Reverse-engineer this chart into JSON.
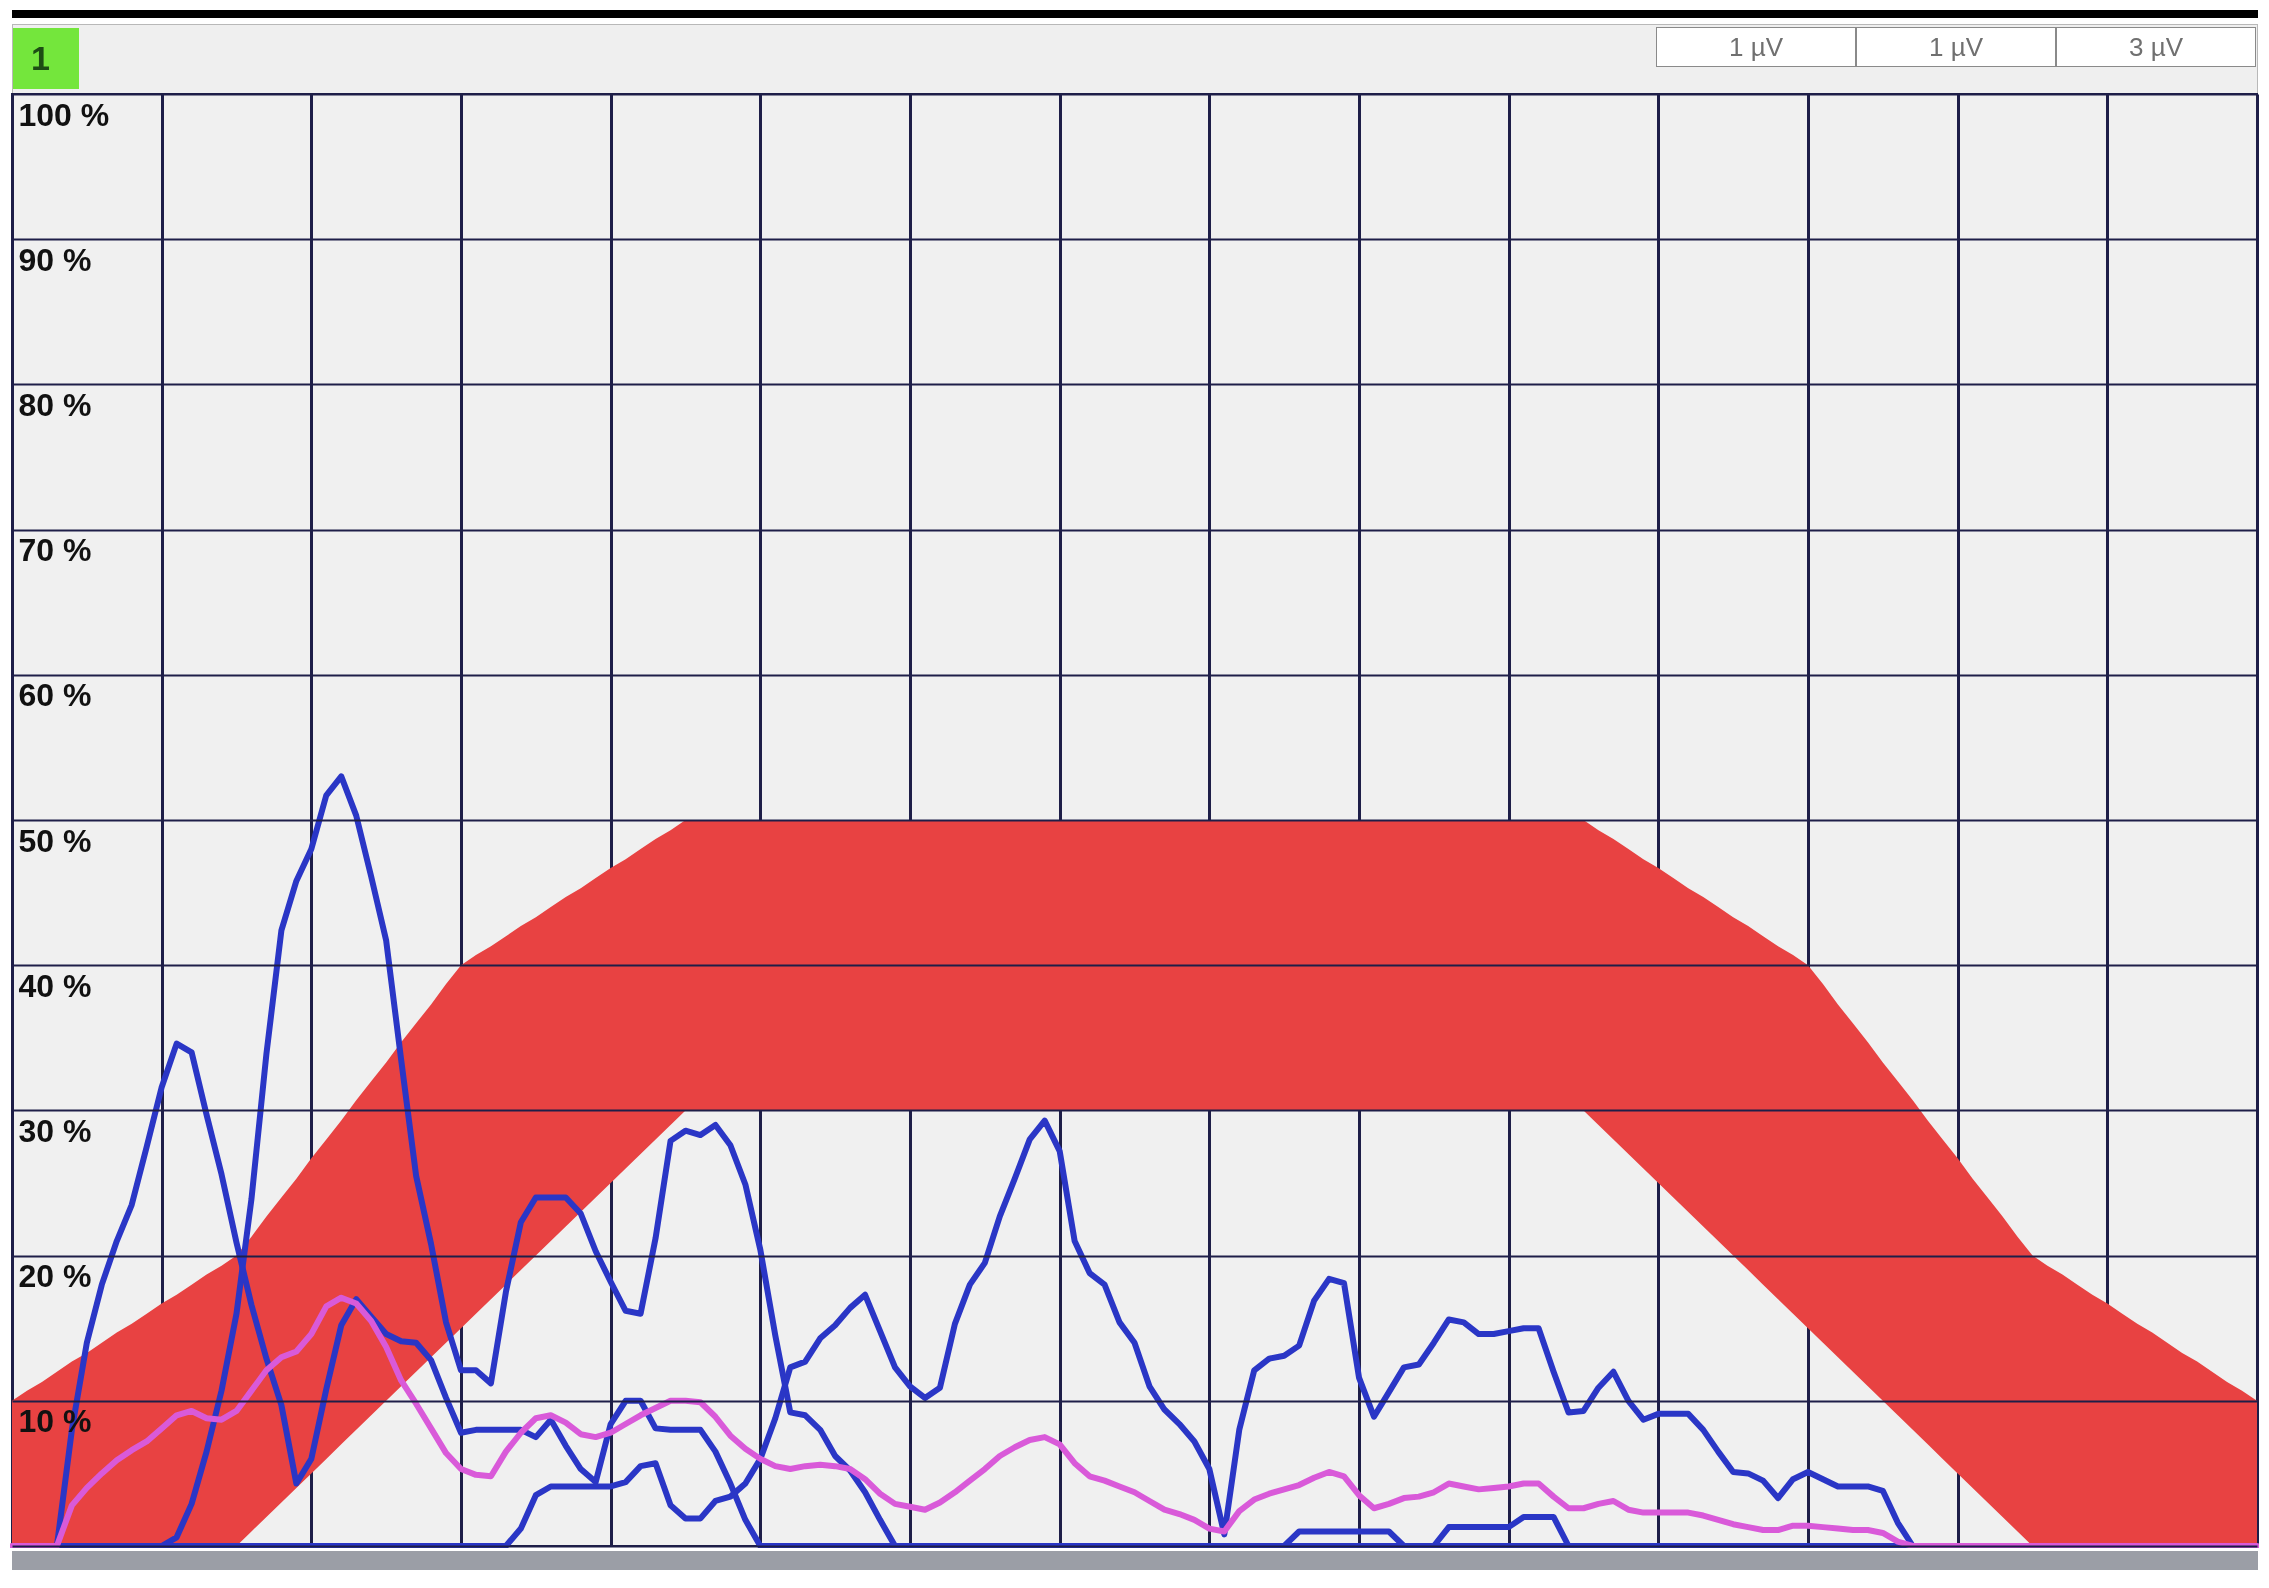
{
  "chart_data": {
    "type": "line",
    "title": "1",
    "annotations": [
      "1 µV",
      "1 µV",
      "3 µV"
    ],
    "categories": [
      null,
      null,
      null,
      null,
      null,
      null,
      null,
      null,
      null,
      null,
      null,
      null,
      null,
      null,
      null,
      null,
      null,
      null,
      null,
      null,
      null,
      null,
      null,
      null,
      null,
      null,
      null,
      null,
      null,
      null,
      null,
      null,
      null,
      null,
      null,
      null,
      null,
      null,
      null,
      null,
      null,
      null,
      null,
      null,
      null,
      null,
      null,
      null,
      null,
      null,
      null,
      null,
      null,
      null,
      null,
      null,
      null,
      null,
      null,
      null,
      null,
      null,
      null,
      null,
      null,
      null,
      null,
      null,
      null,
      null,
      null,
      null,
      null,
      null,
      null,
      null,
      null,
      null,
      null,
      null,
      null,
      null,
      null,
      null,
      null,
      null,
      null,
      null,
      null,
      null,
      null,
      null,
      null,
      null,
      null,
      null,
      null,
      null,
      null,
      null,
      null,
      null,
      null,
      null,
      null,
      null,
      null,
      null,
      null,
      null,
      null,
      null,
      null,
      null,
      null,
      null,
      null,
      null,
      null,
      null,
      null,
      null,
      null,
      null,
      null,
      null,
      null,
      null,
      null,
      null,
      null,
      null,
      null,
      null,
      null,
      null,
      null,
      null,
      null,
      null,
      null,
      null,
      null,
      null,
      null,
      null,
      null,
      null,
      null,
      null,
      null
    ],
    "series": [
      {
        "type": "area",
        "color": "#e84242",
        "values": [
          null,
          null,
          null,
          null,
          null,
          null,
          null,
          null,
          null,
          null,
          null,
          null,
          null,
          null,
          null,
          null,
          null,
          null,
          null,
          null,
          null,
          null,
          null,
          null,
          null,
          null,
          null,
          null,
          null,
          null,
          null,
          null,
          null,
          null,
          null,
          null,
          null,
          null,
          null,
          null,
          null,
          null,
          null,
          null,
          null,
          null,
          null,
          null,
          null,
          null,
          null,
          null,
          null,
          null,
          null,
          null,
          null,
          null,
          null,
          null,
          null,
          null,
          null,
          null,
          null,
          null,
          null,
          null,
          null,
          null,
          null,
          null,
          null,
          null,
          null,
          null,
          null,
          null,
          null,
          null,
          null,
          null,
          null,
          null,
          null,
          null,
          null,
          null,
          null,
          null,
          null,
          null,
          null,
          null,
          null,
          null,
          null,
          null,
          null,
          null,
          null,
          null,
          null,
          null,
          null,
          null,
          null,
          null,
          null,
          null,
          null,
          null,
          null,
          null,
          null,
          null,
          null,
          null,
          null,
          null,
          null,
          null,
          null,
          null,
          null,
          null,
          null,
          null,
          null,
          null,
          null,
          null,
          null,
          null,
          null,
          null,
          null,
          null,
          null,
          null,
          null,
          null,
          null,
          null,
          null,
          null,
          null,
          null,
          null,
          null,
          null
        ],
        "upper": [
          10,
          10.7,
          11.3,
          12,
          12.7,
          13.3,
          14,
          14.7,
          15.3,
          16,
          16.7,
          17.3,
          18,
          18.7,
          19.3,
          20,
          21.3,
          22.7,
          24,
          25.3,
          26.7,
          28,
          29.3,
          30.7,
          32,
          33.3,
          34.7,
          36,
          37.3,
          38.7,
          40,
          40.7,
          41.3,
          42,
          42.7,
          43.3,
          44,
          44.7,
          45.3,
          46,
          46.7,
          47.3,
          48,
          48.7,
          49.3,
          50,
          50,
          50,
          50,
          50,
          50,
          50,
          50,
          50,
          50,
          50,
          50,
          50,
          50,
          50,
          50,
          50,
          50,
          50,
          50,
          50,
          50,
          50,
          50,
          50,
          50,
          50,
          50,
          50,
          50,
          50,
          50,
          50,
          50,
          50,
          50,
          50,
          50,
          50,
          50,
          50,
          50,
          50,
          50,
          50,
          50,
          50,
          50,
          50,
          50,
          50,
          50,
          50,
          50,
          50,
          50,
          50,
          50,
          50,
          50,
          50,
          49.3,
          48.7,
          48,
          47.3,
          46.7,
          46,
          45.3,
          44.7,
          44,
          43.3,
          42.7,
          42,
          41.3,
          40.7,
          40,
          38.7,
          37.3,
          36,
          34.7,
          33.3,
          32,
          30.7,
          29.3,
          28,
          26.7,
          25.3,
          24,
          22.7,
          21.3,
          20,
          19.3,
          18.7,
          18,
          17.3,
          16.7,
          16,
          15.3,
          14.7,
          14,
          13.3,
          12.7,
          12,
          11.3,
          10.7,
          10
        ],
        "lower": [
          0,
          0,
          0,
          0,
          0,
          0,
          0,
          0,
          0,
          0,
          0,
          0,
          0,
          0,
          0,
          0,
          1,
          2,
          3,
          4,
          5,
          6,
          7,
          8,
          9,
          10,
          11,
          12,
          13,
          14,
          15,
          16,
          17,
          18,
          19,
          20,
          21,
          22,
          23,
          24,
          25,
          26,
          27,
          28,
          29,
          30,
          30,
          30,
          30,
          30,
          30,
          30,
          30,
          30,
          30,
          30,
          30,
          30,
          30,
          30,
          30,
          30,
          30,
          30,
          30,
          30,
          30,
          30,
          30,
          30,
          30,
          30,
          30,
          30,
          30,
          30,
          30,
          30,
          30,
          30,
          30,
          30,
          30,
          30,
          30,
          30,
          30,
          30,
          30,
          30,
          30,
          30,
          30,
          30,
          30,
          30,
          30,
          30,
          30,
          30,
          30,
          30,
          30,
          30,
          30,
          30,
          29,
          28,
          27,
          26,
          25,
          24,
          23,
          22,
          21,
          20,
          19,
          18,
          17,
          16,
          15,
          14,
          13,
          12,
          11,
          10,
          9,
          8,
          7,
          6,
          5,
          4,
          3,
          2,
          1,
          0,
          0,
          0,
          0,
          0,
          0,
          0,
          0,
          0,
          0,
          0,
          0,
          0,
          0,
          0,
          0
        ]
      },
      {
        "color": "#2a36c6",
        "values": [
          null,
          null,
          null,
          0,
          8,
          14,
          18,
          21,
          23.5,
          27.5,
          31.6,
          34.6,
          34,
          29.7,
          25.6,
          20.9,
          16.6,
          12.9,
          9.7,
          4.3,
          6,
          10.8,
          15.2,
          17,
          15.8,
          14.6,
          14.1,
          14,
          12.8,
          10.2,
          7.8,
          8,
          8,
          8,
          8,
          7.5,
          8.7,
          6.9,
          5.3,
          4.4,
          8.4,
          10,
          10,
          8.1,
          8,
          8,
          8,
          6.5,
          4.3,
          1.8,
          0,
          0,
          0,
          0,
          0,
          0,
          0,
          0,
          0,
          0,
          0,
          0,
          0,
          0,
          0,
          0,
          0,
          0,
          0,
          0,
          0,
          0,
          0,
          0,
          0,
          0,
          0,
          0,
          0,
          0,
          0,
          0,
          0,
          0,
          0,
          0,
          1,
          1,
          1,
          1,
          1,
          1,
          1,
          0,
          0,
          0,
          1.3,
          1.3,
          1.3,
          1.3,
          1.3,
          2,
          2,
          2,
          0,
          0,
          0,
          0,
          0,
          0,
          0,
          0,
          0,
          0,
          0,
          0,
          0,
          0,
          0,
          0,
          0,
          0,
          0,
          0,
          0,
          0,
          0,
          0,
          null,
          null,
          null,
          null,
          null,
          null,
          null,
          null,
          null,
          null,
          null,
          null,
          null,
          null,
          null,
          null,
          null,
          null,
          null,
          null,
          null,
          null,
          null
        ]
      },
      {
        "color": "#2a36c6",
        "values": [
          null,
          null,
          null,
          0,
          0,
          0,
          0,
          0,
          0,
          0,
          0,
          0.6,
          2.9,
          6.5,
          10.7,
          16,
          23.9,
          33.9,
          42.4,
          45.8,
          48,
          51.7,
          53,
          50.3,
          46.1,
          41.7,
          33.5,
          25.5,
          20.8,
          15.4,
          12.1,
          12.1,
          11.2,
          17.5,
          22.3,
          24,
          24,
          24,
          22.9,
          20.3,
          18.2,
          16.2,
          16,
          21.2,
          27.9,
          28.6,
          28.3,
          29,
          27.6,
          24.9,
          20.4,
          14.5,
          9.2,
          9,
          8,
          6.2,
          5.2,
          3.7,
          1.8,
          0,
          0,
          0,
          0,
          0,
          0,
          0,
          0,
          0,
          0,
          0,
          0,
          0,
          0,
          0,
          0,
          0,
          0,
          0,
          0,
          0,
          0,
          0,
          0,
          0,
          0,
          0,
          0,
          0,
          0,
          0,
          0,
          0,
          0,
          0,
          0,
          0,
          0,
          0,
          0,
          0,
          0,
          0,
          0,
          0,
          0,
          0,
          0,
          0,
          0,
          0,
          0,
          0,
          0,
          0,
          0,
          0,
          0,
          0,
          0,
          0,
          0,
          0,
          0,
          0,
          0,
          0,
          0,
          0,
          null,
          null,
          null,
          null,
          null,
          null,
          null,
          null,
          null,
          null,
          null,
          null,
          null,
          null,
          null,
          null,
          null,
          null,
          null,
          null,
          null,
          null,
          null
        ]
      },
      {
        "color": "#2a36c6",
        "values": [
          null,
          null,
          null,
          0,
          0,
          0,
          0,
          0,
          0,
          0,
          0,
          0,
          0,
          0,
          0,
          0,
          0,
          0,
          0,
          0,
          0,
          0,
          0,
          0,
          0,
          0,
          0,
          0,
          0,
          0,
          0,
          0,
          0,
          0,
          1.2,
          3.5,
          4.1,
          4.1,
          4.1,
          4.1,
          4.1,
          4.4,
          5.5,
          5.7,
          2.8,
          1.9,
          1.9,
          3.1,
          3.4,
          4.3,
          6,
          8.8,
          12.3,
          12.7,
          14.3,
          15.2,
          16.4,
          17.3,
          14.8,
          12.3,
          11,
          10.2,
          10.9,
          15.3,
          18,
          19.5,
          22.7,
          25.3,
          28,
          29.3,
          27.2,
          21,
          18.8,
          18,
          15.4,
          14,
          11,
          9.4,
          8.4,
          7.2,
          5.3,
          0.8,
          8,
          12.1,
          12.9,
          13.1,
          13.8,
          16.9,
          18.4,
          18.1,
          11.6,
          8.9,
          10.6,
          12.3,
          12.5,
          14,
          15.6,
          15.4,
          14.6,
          14.6,
          14.8,
          15,
          15,
          12,
          9.2,
          9.3,
          10.9,
          12,
          10,
          8.7,
          9.1,
          9.1,
          9.1,
          8,
          6.5,
          5.1,
          5,
          4.5,
          3.3,
          4.6,
          5.1,
          4.6,
          4.1,
          4.1,
          4.1,
          3.8,
          1.6,
          0,
          null,
          null,
          null,
          null,
          null,
          null,
          null,
          null,
          null,
          null,
          null,
          null,
          null,
          null,
          null,
          null,
          null,
          null,
          null,
          null,
          null,
          null,
          null
        ]
      },
      {
        "color": "#d95ad9",
        "values": [
          0,
          0,
          0,
          0,
          2.8,
          4,
          5,
          5.9,
          6.6,
          7.2,
          8.1,
          9,
          9.3,
          8.8,
          8.7,
          9.3,
          10.7,
          12.1,
          13,
          13.4,
          14.6,
          16.5,
          17.1,
          16.7,
          15.5,
          13.7,
          11.4,
          9.8,
          8.1,
          6.4,
          5.3,
          4.9,
          4.8,
          6.5,
          7.8,
          8.8,
          9,
          8.5,
          7.7,
          7.5,
          7.8,
          8.4,
          9,
          9.5,
          10,
          10,
          9.9,
          8.9,
          7.6,
          6.7,
          6,
          5.5,
          5.3,
          5.5,
          5.6,
          5.5,
          5.3,
          4.6,
          3.6,
          2.9,
          2.7,
          2.5,
          3,
          3.7,
          4.5,
          5.3,
          6.2,
          6.8,
          7.3,
          7.5,
          7,
          5.7,
          4.8,
          4.5,
          4.1,
          3.7,
          3.1,
          2.5,
          2.2,
          1.8,
          1.2,
          1,
          2.4,
          3.2,
          3.6,
          3.9,
          4.2,
          4.7,
          5.1,
          4.8,
          3.5,
          2.6,
          2.9,
          3.3,
          3.4,
          3.7,
          4.3,
          4.1,
          3.9,
          4,
          4.1,
          4.3,
          4.3,
          3.4,
          2.6,
          2.6,
          2.9,
          3.1,
          2.5,
          2.3,
          2.3,
          2.3,
          2.3,
          2.1,
          1.8,
          1.5,
          1.3,
          1.1,
          1.1,
          1.4,
          1.4,
          1.3,
          1.2,
          1.1,
          1.1,
          0.9,
          0.3,
          0,
          0,
          0,
          0,
          0,
          0,
          0,
          0,
          0,
          0,
          0,
          0,
          0,
          0,
          0,
          0,
          0,
          0,
          0,
          0,
          0,
          0,
          0,
          0
        ]
      }
    ],
    "ylim": [
      0,
      100
    ],
    "yticks": [
      {
        "value": 0,
        "label": null
      },
      {
        "value": 10,
        "label": "10 %"
      },
      {
        "value": 20,
        "label": "20 %"
      },
      {
        "value": 30,
        "label": "30 %"
      },
      {
        "value": 40,
        "label": "40 %"
      },
      {
        "value": 50,
        "label": "50 %"
      },
      {
        "value": 60,
        "label": "60 %"
      },
      {
        "value": 70,
        "label": "70 %"
      },
      {
        "value": 80,
        "label": "80 %"
      },
      {
        "value": 90,
        "label": "90 %"
      },
      {
        "value": 100,
        "label": "100 %"
      }
    ],
    "grid": true
  }
}
